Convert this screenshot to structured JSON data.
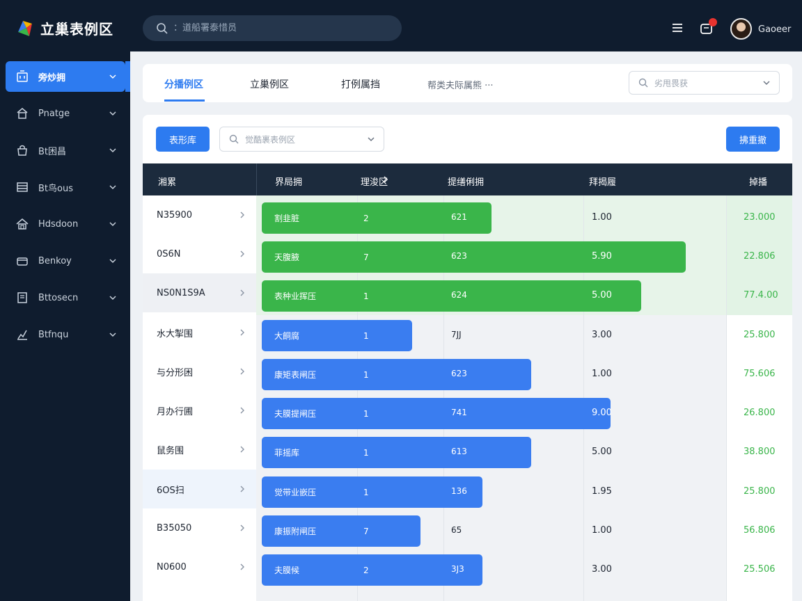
{
  "app": {
    "brand": "立巢表例区",
    "search_placeholder": "：道船署泰惜员",
    "username": "Gaoeer"
  },
  "sidebar": {
    "items": [
      {
        "label": "旁炒拥",
        "icon": "building-icon",
        "active": true
      },
      {
        "label": "Pnatge",
        "icon": "home-icon",
        "active": false
      },
      {
        "label": "Bt困昌",
        "icon": "bag-icon",
        "active": false
      },
      {
        "label": "Bt鸟ous",
        "icon": "table-icon",
        "active": false
      },
      {
        "label": "Hdsdoon",
        "icon": "house-icon",
        "active": false
      },
      {
        "label": "Benkoy",
        "icon": "wallet-icon",
        "active": false
      },
      {
        "label": "Bttosecn",
        "icon": "document-icon",
        "active": false
      },
      {
        "label": "Btfnqu",
        "icon": "chart-icon",
        "active": false
      }
    ]
  },
  "tabs": [
    {
      "label": "分播例区",
      "active": true
    },
    {
      "label": "立巢例区",
      "active": false
    },
    {
      "label": "打例属挡",
      "active": false
    }
  ],
  "tab_more": "帮类夫际属熊 ···",
  "filter_select": {
    "placeholder": "劣甩畏获"
  },
  "toolbar": {
    "left_button": "表形库",
    "search_placeholder": "觉酷裹表例区",
    "right_button": "拂重撤"
  },
  "table": {
    "headers": [
      "湘累",
      "界局拥",
      "理浚区",
      "提缮俐拥",
      "拜揭履",
      "掉播"
    ],
    "rows": [
      {
        "name": "N35900",
        "bar_label": "割韭脏",
        "v1": "2",
        "v2": "621",
        "v3": "1.00",
        "score": "23.000",
        "color": "green",
        "fill": 0.52
      },
      {
        "name": "0S6N",
        "bar_label": "天腹腋",
        "v1": "7",
        "v2": "623",
        "v3": "5.90",
        "score": "22.806",
        "color": "green",
        "fill": 0.96
      },
      {
        "name": "NS0N1S9A",
        "bar_label": "表种业挥压",
        "v1": "1",
        "v2": "624",
        "v3": "5.00",
        "score": "77.4.00",
        "color": "green",
        "fill": 0.86
      },
      {
        "name": "水大掣围",
        "bar_label": "大餇腐",
        "v1": "1",
        "v2": "7JJ",
        "v3": "3.00",
        "score": "25.800",
        "color": "blue",
        "fill": 0.34
      },
      {
        "name": "与分形困",
        "bar_label": "康矩表闸压",
        "v1": "1",
        "v2": "623",
        "v3": "1.00",
        "score": "75.606",
        "color": "blue",
        "fill": 0.61
      },
      {
        "name": "月办行圃",
        "bar_label": "夫膜提闸压",
        "v1": "1",
        "v2": "741",
        "v3": "9.00",
        "score": "26.800",
        "color": "blue",
        "fill": 0.79
      },
      {
        "name": "鼠务围",
        "bar_label": "菲摇库",
        "v1": "1",
        "v2": "613",
        "v3": "5.00",
        "score": "38.800",
        "color": "blue",
        "fill": 0.61
      },
      {
        "name": "6OS扫",
        "bar_label": "觉带业嵌压",
        "v1": "1",
        "v2": "136",
        "v3": "1.95",
        "score": "25.800",
        "color": "blue",
        "fill": 0.5
      },
      {
        "name": "B35050",
        "bar_label": "康振附闸压",
        "v1": "7",
        "v2": "65",
        "v3": "1.00",
        "score": "56.806",
        "color": "blue",
        "fill": 0.36
      },
      {
        "name": "N0600",
        "bar_label": "夫膜候",
        "v1": "2",
        "v2": "3J3",
        "v3": "3.00",
        "score": "25.506",
        "color": "blue",
        "fill": 0.5
      }
    ]
  },
  "colors": {
    "accent": "#2d7bf0",
    "green": "#3ab54a",
    "dark": "#0f1c2e",
    "header": "#1c2b3d"
  }
}
